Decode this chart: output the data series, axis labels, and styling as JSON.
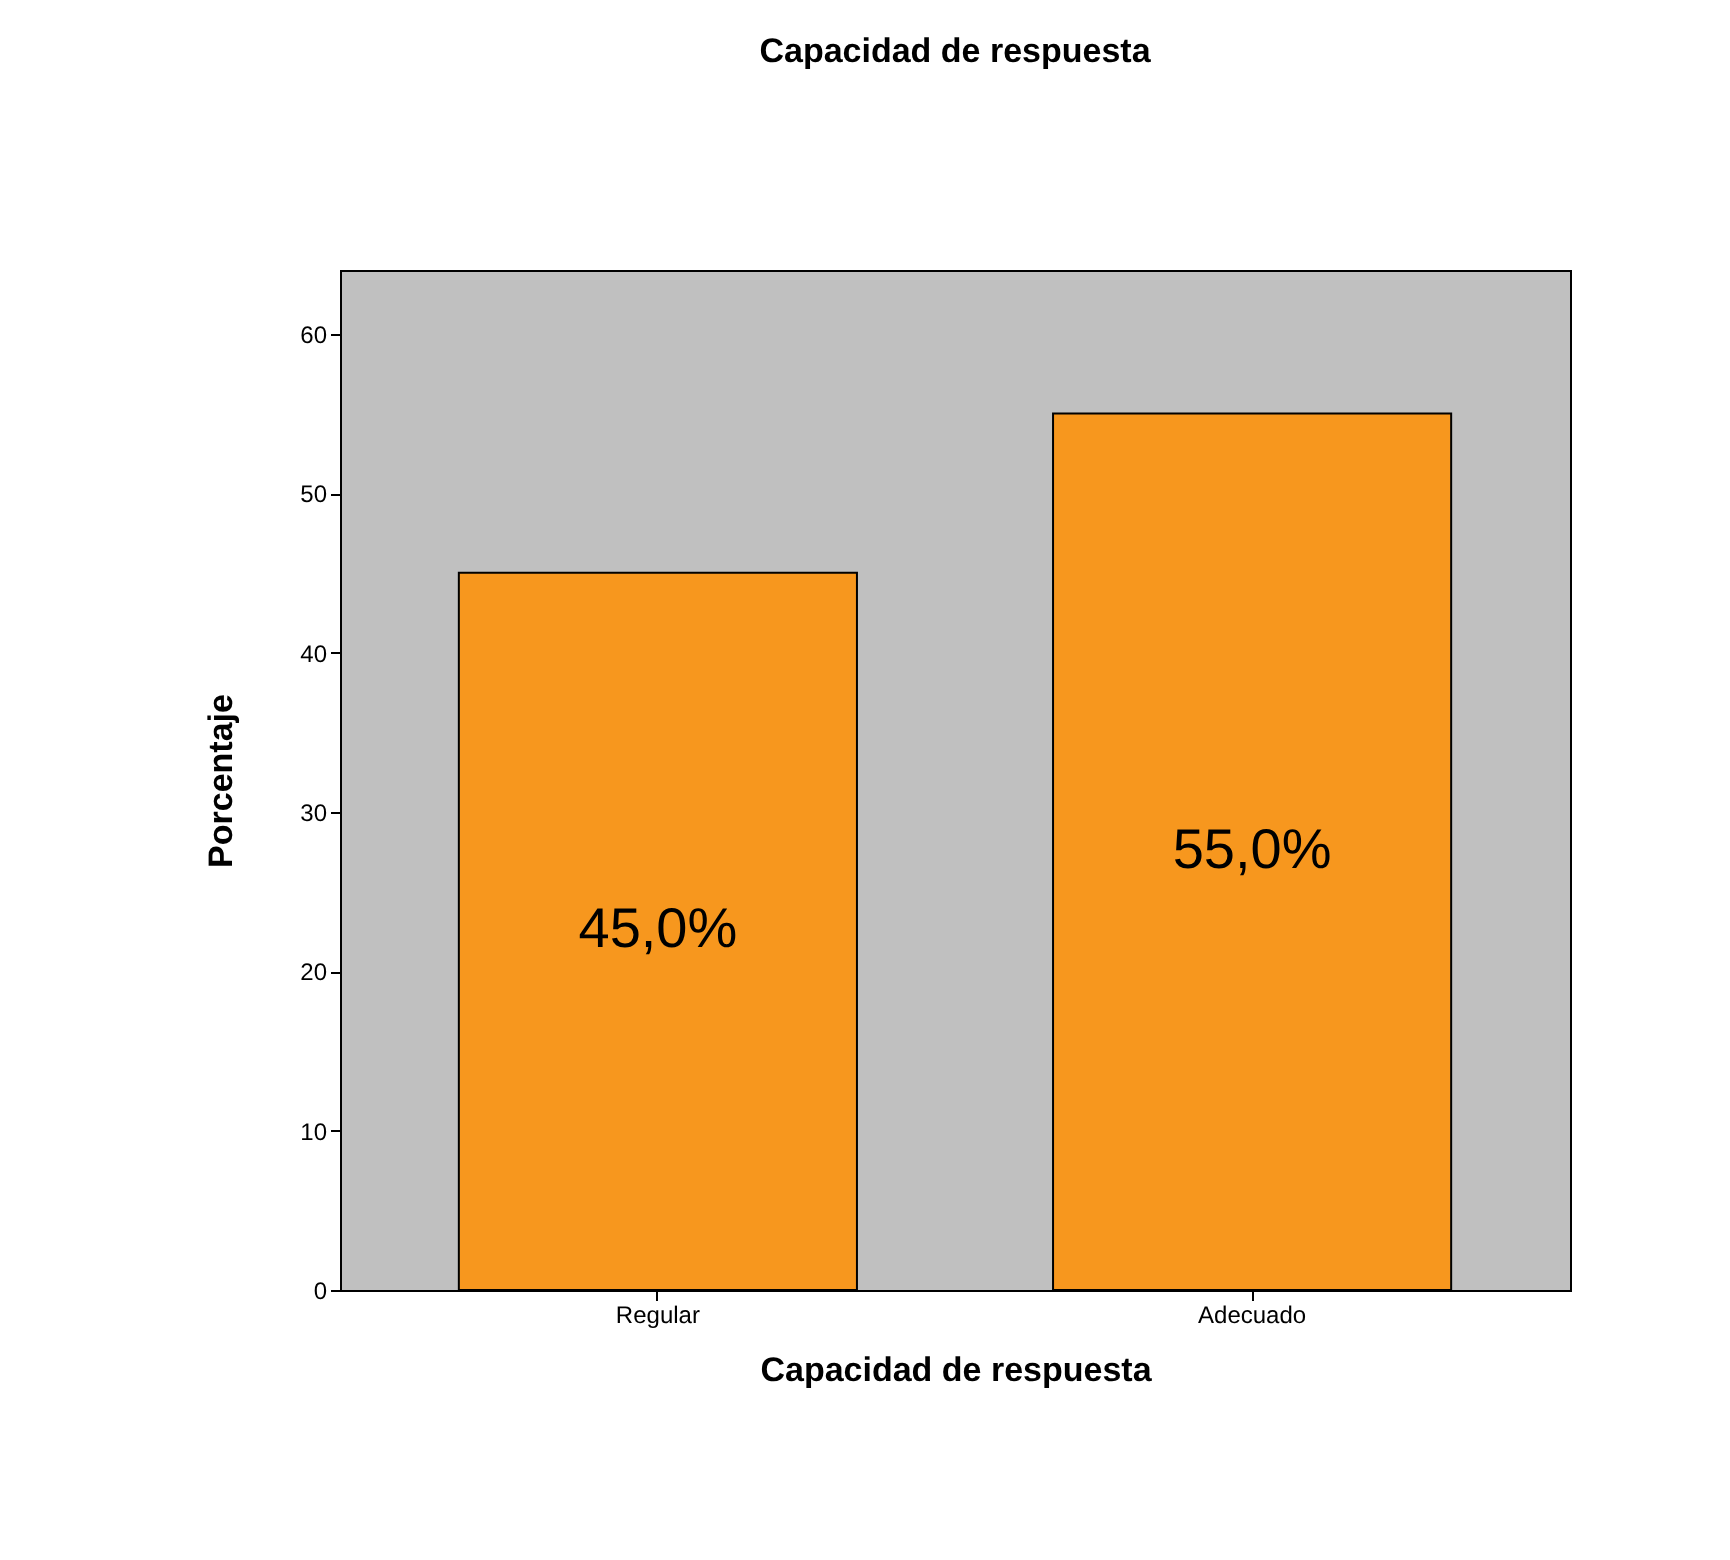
{
  "chart_data": {
    "type": "bar",
    "title": "Capacidad de respuesta",
    "xlabel": "Capacidad de respuesta",
    "ylabel": "Porcentaje",
    "categories": [
      "Regular",
      "Adecuado"
    ],
    "values": [
      45,
      55
    ],
    "color": "#f7971e",
    "value_labels": [
      "45,0%",
      "55,0%"
    ],
    "ylim": [
      0,
      64
    ],
    "yticks": [
      0,
      10,
      20,
      30,
      40,
      50,
      60
    ],
    "grid": false
  }
}
